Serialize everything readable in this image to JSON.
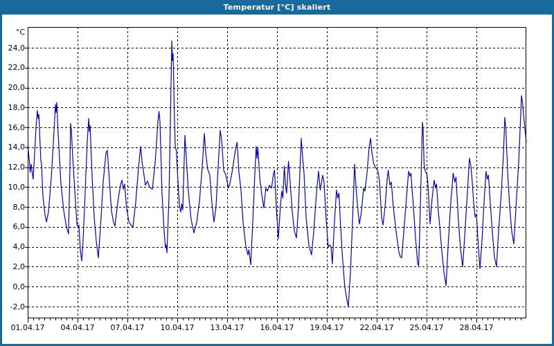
{
  "window": {
    "title": "Temperatur [°C] skaliert"
  },
  "colors": {
    "titlebar": "#176a9e",
    "window_border": "#176a9e",
    "plot_background": "#ffffff",
    "grid": "#000000",
    "axis_text": "#000000",
    "series_line": "#0000cd"
  },
  "chart_data": {
    "type": "line",
    "title": "Temperatur [°C] skaliert",
    "unit_label": "°C",
    "xlabel": "",
    "ylabel": "°C",
    "grid": "dashed, horizontal every 2°C and vertical every 3 days",
    "legend": "none",
    "ylim": [
      -3.18,
      26.09
    ],
    "xlim_days": [
      0,
      30
    ],
    "y_ticks": [
      {
        "value": 24,
        "label": "24,0"
      },
      {
        "value": 22,
        "label": "22,0"
      },
      {
        "value": 20,
        "label": "20,0"
      },
      {
        "value": 18,
        "label": "18,0"
      },
      {
        "value": 16,
        "label": "16,0"
      },
      {
        "value": 14,
        "label": "14,0"
      },
      {
        "value": 12,
        "label": "12,0"
      },
      {
        "value": 10,
        "label": "10,0"
      },
      {
        "value": 8,
        "label": "8,0"
      },
      {
        "value": 6,
        "label": "6,0"
      },
      {
        "value": 4,
        "label": "4,0"
      },
      {
        "value": 2,
        "label": "2,0"
      },
      {
        "value": 0,
        "label": "0,0"
      },
      {
        "value": -2,
        "label": "-2,0"
      }
    ],
    "x_ticks": [
      {
        "day": 1,
        "label": "01.04.17"
      },
      {
        "day": 4,
        "label": "04.04.17"
      },
      {
        "day": 7,
        "label": "07.04.17"
      },
      {
        "day": 10,
        "label": "10.04.17"
      },
      {
        "day": 13,
        "label": "13.04.17"
      },
      {
        "day": 16,
        "label": "16.04.17"
      },
      {
        "day": 19,
        "label": "19.04.17"
      },
      {
        "day": 22,
        "label": "22.04.17"
      },
      {
        "day": 25,
        "label": "25.04.17"
      },
      {
        "day": 28,
        "label": "28.04.17"
      }
    ],
    "minor_x_tick_hours": 8,
    "series": [
      {
        "name": "Temperatur",
        "color": "#0000cd",
        "points": [
          [
            0.0,
            14.2
          ],
          [
            0.08,
            13.0
          ],
          [
            0.15,
            11.5
          ],
          [
            0.21,
            12.3
          ],
          [
            0.29,
            11.2
          ],
          [
            0.33,
            10.8
          ],
          [
            0.42,
            13.5
          ],
          [
            0.5,
            16.0
          ],
          [
            0.58,
            17.7
          ],
          [
            0.63,
            16.9
          ],
          [
            0.67,
            17.3
          ],
          [
            0.79,
            12.6
          ],
          [
            0.83,
            12.4
          ],
          [
            0.92,
            9.0
          ],
          [
            1.04,
            7.2
          ],
          [
            1.13,
            6.5
          ],
          [
            1.25,
            7.5
          ],
          [
            1.42,
            11.0
          ],
          [
            1.58,
            15.5
          ],
          [
            1.67,
            18.3
          ],
          [
            1.71,
            17.5
          ],
          [
            1.75,
            18.5
          ],
          [
            1.83,
            15.5
          ],
          [
            1.88,
            14.0
          ],
          [
            2.0,
            10.3
          ],
          [
            2.17,
            7.6
          ],
          [
            2.33,
            6.0
          ],
          [
            2.46,
            5.3
          ],
          [
            2.54,
            12.0
          ],
          [
            2.58,
            16.4
          ],
          [
            2.63,
            15.7
          ],
          [
            2.71,
            13.0
          ],
          [
            2.83,
            9.8
          ],
          [
            2.96,
            6.3
          ],
          [
            3.04,
            5.9
          ],
          [
            3.08,
            6.2
          ],
          [
            3.17,
            3.6
          ],
          [
            3.25,
            2.6
          ],
          [
            3.33,
            4.5
          ],
          [
            3.46,
            9.5
          ],
          [
            3.58,
            14.5
          ],
          [
            3.67,
            16.9
          ],
          [
            3.71,
            15.6
          ],
          [
            3.75,
            16.2
          ],
          [
            3.88,
            11.0
          ],
          [
            4.0,
            7.0
          ],
          [
            4.13,
            4.5
          ],
          [
            4.25,
            2.9
          ],
          [
            4.38,
            6.0
          ],
          [
            4.54,
            10.5
          ],
          [
            4.71,
            13.4
          ],
          [
            4.79,
            13.7
          ],
          [
            4.92,
            10.5
          ],
          [
            5.04,
            7.6
          ],
          [
            5.17,
            6.4
          ],
          [
            5.25,
            6.1
          ],
          [
            5.42,
            8.5
          ],
          [
            5.58,
            10.2
          ],
          [
            5.67,
            10.7
          ],
          [
            5.75,
            9.8
          ],
          [
            5.83,
            10.3
          ],
          [
            5.96,
            7.8
          ],
          [
            6.08,
            6.6
          ],
          [
            6.21,
            6.2
          ],
          [
            6.33,
            6.0
          ],
          [
            6.5,
            8.5
          ],
          [
            6.67,
            12.0
          ],
          [
            6.79,
            14.1
          ],
          [
            6.88,
            12.5
          ],
          [
            6.96,
            11.7
          ],
          [
            7.08,
            10.2
          ],
          [
            7.21,
            10.6
          ],
          [
            7.33,
            10.0
          ],
          [
            7.5,
            9.8
          ],
          [
            7.67,
            12.5
          ],
          [
            7.83,
            16.5
          ],
          [
            7.9,
            17.6
          ],
          [
            7.96,
            16.6
          ],
          [
            8.08,
            9.5
          ],
          [
            8.21,
            5.5
          ],
          [
            8.29,
            3.9
          ],
          [
            8.33,
            4.2
          ],
          [
            8.38,
            3.4
          ],
          [
            8.5,
            9.0
          ],
          [
            8.58,
            16.0
          ],
          [
            8.67,
            24.7
          ],
          [
            8.71,
            22.7
          ],
          [
            8.75,
            23.4
          ],
          [
            8.83,
            17.0
          ],
          [
            8.88,
            14.0
          ],
          [
            8.94,
            13.7
          ],
          [
            9.04,
            10.5
          ],
          [
            9.13,
            8.2
          ],
          [
            9.21,
            7.5
          ],
          [
            9.27,
            8.3
          ],
          [
            9.33,
            7.7
          ],
          [
            9.42,
            13.0
          ],
          [
            9.46,
            15.2
          ],
          [
            9.54,
            13.0
          ],
          [
            9.67,
            9.5
          ],
          [
            9.83,
            6.8
          ],
          [
            10.0,
            5.4
          ],
          [
            10.17,
            6.5
          ],
          [
            10.33,
            8.5
          ],
          [
            10.5,
            12.0
          ],
          [
            10.63,
            15.4
          ],
          [
            10.71,
            13.5
          ],
          [
            10.83,
            11.8
          ],
          [
            10.96,
            11.2
          ],
          [
            11.08,
            8.5
          ],
          [
            11.21,
            6.5
          ],
          [
            11.33,
            8.0
          ],
          [
            11.46,
            12.0
          ],
          [
            11.58,
            15.7
          ],
          [
            11.67,
            14.7
          ],
          [
            11.79,
            11.7
          ],
          [
            11.92,
            11.2
          ],
          [
            12.08,
            9.9
          ],
          [
            12.17,
            10.4
          ],
          [
            12.33,
            11.8
          ],
          [
            12.5,
            13.8
          ],
          [
            12.6,
            14.5
          ],
          [
            12.71,
            11.5
          ],
          [
            12.83,
            9.8
          ],
          [
            12.96,
            6.5
          ],
          [
            13.13,
            4.0
          ],
          [
            13.25,
            3.2
          ],
          [
            13.31,
            3.7
          ],
          [
            13.42,
            2.2
          ],
          [
            13.54,
            6.5
          ],
          [
            13.67,
            11.5
          ],
          [
            13.75,
            14.1
          ],
          [
            13.8,
            12.9
          ],
          [
            13.85,
            14.0
          ],
          [
            13.96,
            11.0
          ],
          [
            14.08,
            9.3
          ],
          [
            14.21,
            7.9
          ],
          [
            14.33,
            9.9
          ],
          [
            14.42,
            9.6
          ],
          [
            14.54,
            10.2
          ],
          [
            14.67,
            9.9
          ],
          [
            14.79,
            11.4
          ],
          [
            14.85,
            11.7
          ],
          [
            14.96,
            8.0
          ],
          [
            15.08,
            4.8
          ],
          [
            15.21,
            8.2
          ],
          [
            15.29,
            9.6
          ],
          [
            15.35,
            8.9
          ],
          [
            15.44,
            12.1
          ],
          [
            15.52,
            10.0
          ],
          [
            15.58,
            9.4
          ],
          [
            15.69,
            12.6
          ],
          [
            15.79,
            10.5
          ],
          [
            15.92,
            7.5
          ],
          [
            16.04,
            5.6
          ],
          [
            16.17,
            4.9
          ],
          [
            16.29,
            8.0
          ],
          [
            16.4,
            12.5
          ],
          [
            16.46,
            14.9
          ],
          [
            16.54,
            13.0
          ],
          [
            16.63,
            11.3
          ],
          [
            16.75,
            7.0
          ],
          [
            16.92,
            4.1
          ],
          [
            17.08,
            3.2
          ],
          [
            17.21,
            5.5
          ],
          [
            17.38,
            9.5
          ],
          [
            17.5,
            11.6
          ],
          [
            17.6,
            9.7
          ],
          [
            17.75,
            11.2
          ],
          [
            17.83,
            10.5
          ],
          [
            17.96,
            6.8
          ],
          [
            18.08,
            4.0
          ],
          [
            18.17,
            4.2
          ],
          [
            18.25,
            4.0
          ],
          [
            18.33,
            2.3
          ],
          [
            18.46,
            6.5
          ],
          [
            18.58,
            9.7
          ],
          [
            18.65,
            8.9
          ],
          [
            18.73,
            9.4
          ],
          [
            18.83,
            6.0
          ],
          [
            18.96,
            2.5
          ],
          [
            19.08,
            0.0
          ],
          [
            19.17,
            -1.0
          ],
          [
            19.29,
            -2.0
          ],
          [
            19.42,
            1.5
          ],
          [
            19.54,
            6.5
          ],
          [
            19.63,
            10.5
          ],
          [
            19.67,
            12.3
          ],
          [
            19.75,
            10.0
          ],
          [
            19.88,
            7.5
          ],
          [
            19.96,
            6.3
          ],
          [
            20.08,
            7.5
          ],
          [
            20.21,
            9.9
          ],
          [
            20.29,
            9.6
          ],
          [
            20.42,
            11.5
          ],
          [
            20.54,
            14.0
          ],
          [
            20.63,
            14.9
          ],
          [
            20.71,
            13.5
          ],
          [
            20.83,
            12.3
          ],
          [
            20.96,
            11.9
          ],
          [
            21.08,
            11.6
          ],
          [
            21.17,
            10.5
          ],
          [
            21.29,
            7.0
          ],
          [
            21.38,
            6.2
          ],
          [
            21.5,
            8.0
          ],
          [
            21.63,
            10.8
          ],
          [
            21.69,
            11.7
          ],
          [
            21.79,
            10.2
          ],
          [
            21.88,
            10.5
          ],
          [
            22.0,
            8.0
          ],
          [
            22.17,
            5.5
          ],
          [
            22.33,
            3.5
          ],
          [
            22.42,
            3.0
          ],
          [
            22.5,
            2.9
          ],
          [
            22.63,
            5.5
          ],
          [
            22.79,
            9.0
          ],
          [
            22.92,
            11.6
          ],
          [
            23.0,
            11.1
          ],
          [
            23.06,
            11.4
          ],
          [
            23.21,
            8.0
          ],
          [
            23.33,
            5.0
          ],
          [
            23.46,
            2.4
          ],
          [
            23.52,
            2.1
          ],
          [
            23.58,
            5.0
          ],
          [
            23.67,
            11.0
          ],
          [
            23.75,
            16.5
          ],
          [
            23.79,
            15.8
          ],
          [
            23.85,
            12.3
          ],
          [
            23.92,
            11.6
          ],
          [
            24.02,
            11.3
          ],
          [
            24.08,
            10.4
          ],
          [
            24.21,
            6.3
          ],
          [
            24.33,
            8.8
          ],
          [
            24.46,
            10.7
          ],
          [
            24.54,
            9.9
          ],
          [
            24.6,
            10.3
          ],
          [
            24.71,
            7.5
          ],
          [
            24.79,
            6.1
          ],
          [
            24.92,
            3.5
          ],
          [
            25.04,
            1.5
          ],
          [
            25.17,
            0.1
          ],
          [
            25.29,
            4.0
          ],
          [
            25.46,
            8.5
          ],
          [
            25.6,
            11.4
          ],
          [
            25.69,
            10.5
          ],
          [
            25.77,
            11.0
          ],
          [
            25.92,
            6.5
          ],
          [
            26.04,
            3.8
          ],
          [
            26.17,
            2.0
          ],
          [
            26.29,
            5.0
          ],
          [
            26.46,
            9.5
          ],
          [
            26.58,
            12.9
          ],
          [
            26.67,
            12.1
          ],
          [
            26.75,
            10.5
          ],
          [
            26.83,
            8.5
          ],
          [
            26.92,
            7.0
          ],
          [
            27.0,
            7.3
          ],
          [
            27.08,
            5.0
          ],
          [
            27.21,
            1.8
          ],
          [
            27.33,
            4.5
          ],
          [
            27.46,
            8.5
          ],
          [
            27.58,
            11.6
          ],
          [
            27.65,
            10.8
          ],
          [
            27.72,
            11.2
          ],
          [
            27.83,
            8.5
          ],
          [
            27.96,
            5.5
          ],
          [
            28.08,
            3.0
          ],
          [
            28.21,
            2.0
          ],
          [
            28.33,
            5.5
          ],
          [
            28.5,
            9.5
          ],
          [
            28.63,
            13.5
          ],
          [
            28.71,
            17.0
          ],
          [
            28.77,
            15.8
          ],
          [
            28.88,
            11.5
          ],
          [
            29.0,
            8.0
          ],
          [
            29.13,
            5.5
          ],
          [
            29.25,
            4.3
          ],
          [
            29.38,
            8.0
          ],
          [
            29.54,
            12.5
          ],
          [
            29.67,
            17.5
          ],
          [
            29.71,
            19.2
          ],
          [
            29.77,
            18.5
          ],
          [
            29.88,
            16.5
          ],
          [
            30.0,
            14.5
          ]
        ]
      }
    ]
  }
}
